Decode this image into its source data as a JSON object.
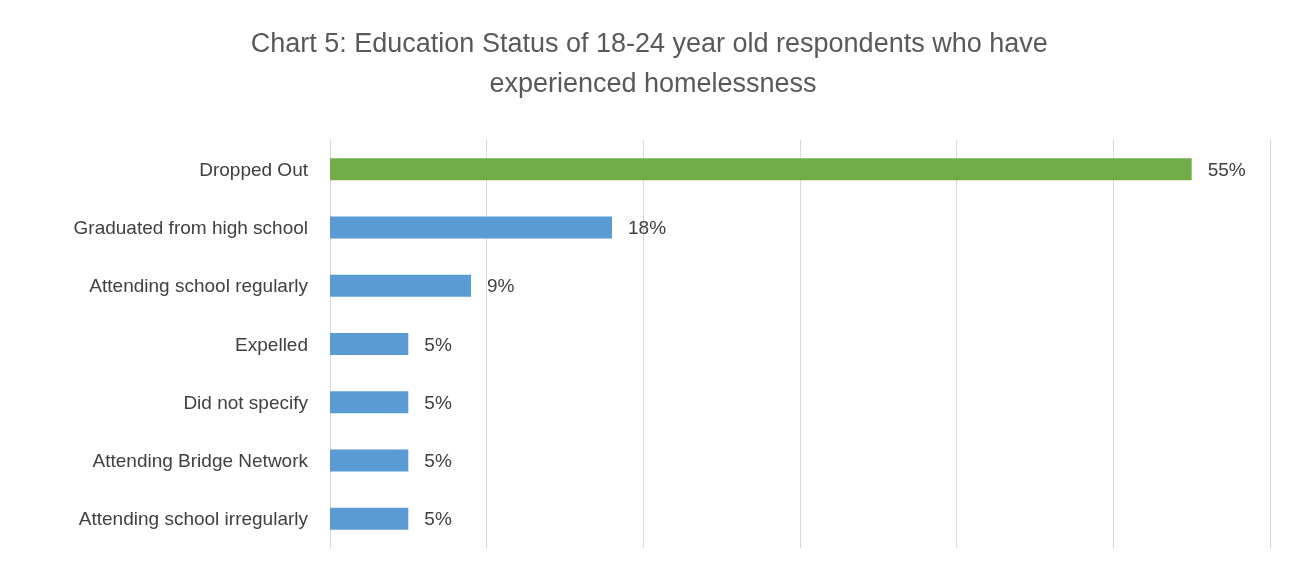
{
  "chart_data": {
    "type": "bar",
    "orientation": "horizontal",
    "title": "Chart 5: Education Status of 18-24 year old respondents who have experienced homelessness",
    "categories": [
      "Dropped Out",
      "Graduated from high school",
      "Attending school regularly",
      "Expelled",
      "Did not specify",
      "Attending Bridge Network",
      "Attending school irregularly"
    ],
    "values": [
      55,
      18,
      9,
      5,
      5,
      5,
      5
    ],
    "colors": [
      "#70ad47",
      "#5b9bd5",
      "#5b9bd5",
      "#5b9bd5",
      "#5b9bd5",
      "#5b9bd5",
      "#5b9bd5"
    ],
    "value_labels": [
      "55%",
      "18%",
      "9%",
      "5%",
      "5%",
      "5%",
      "5%"
    ],
    "xlim": [
      0,
      60
    ],
    "xticks": [
      {
        "value": 0,
        "label": null
      },
      {
        "value": 10,
        "label": null
      },
      {
        "value": 20,
        "label": null
      },
      {
        "value": 30,
        "label": null
      },
      {
        "value": 40,
        "label": null
      },
      {
        "value": 50,
        "label": null
      },
      {
        "value": 60,
        "label": null
      }
    ],
    "grid": "x",
    "tick_labels": "y"
  }
}
